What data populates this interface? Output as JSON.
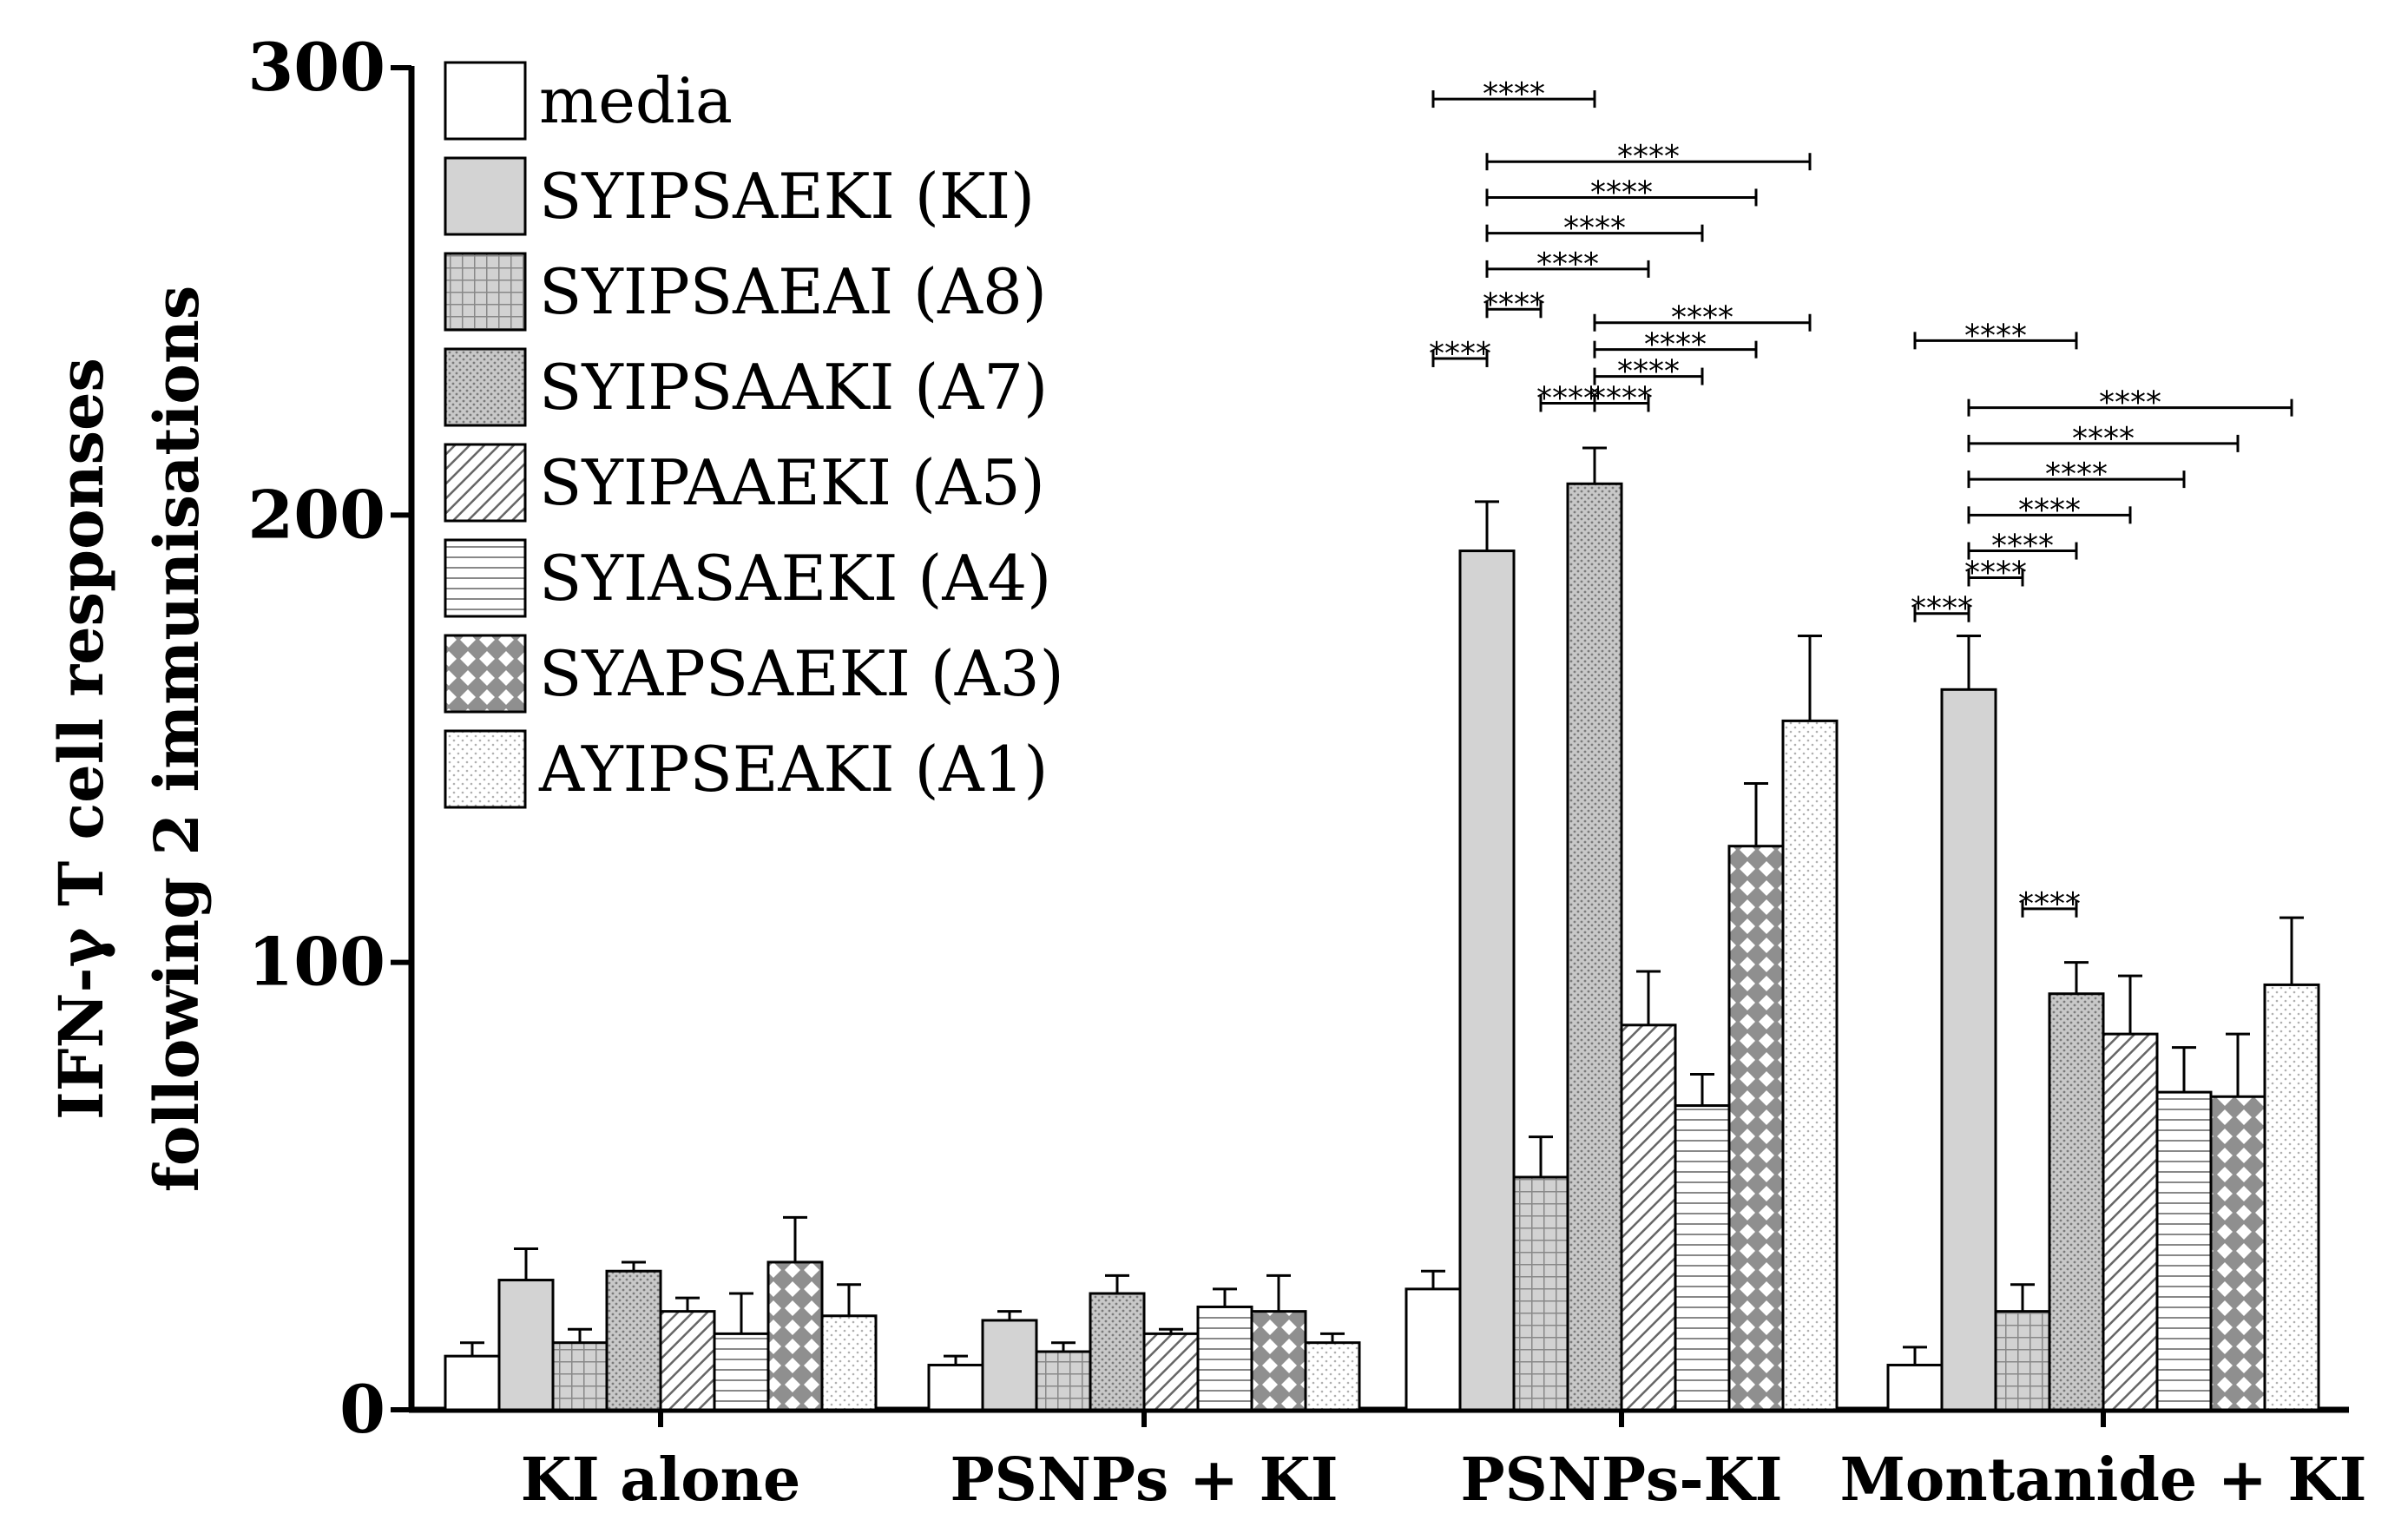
{
  "chart_data": {
    "type": "bar",
    "title": "",
    "xlabel": "",
    "ylabel": "IFN-γ T cell responses following 2 immunisations",
    "ylabel_lines": [
      "IFN-γ T cell responses",
      "following 2 immunisations"
    ],
    "ylim": [
      0,
      300
    ],
    "yticks": [
      "0",
      "100",
      "200",
      "300"
    ],
    "categories": [
      "KI alone",
      "PSNPs + KI",
      "PSNPs-KI",
      "Montanide + KI"
    ],
    "legend_position": "top-left",
    "series": [
      {
        "name": "media",
        "pattern": "white",
        "values": [
          12,
          10,
          27,
          10
        ],
        "errors": [
          3,
          2,
          4,
          4
        ]
      },
      {
        "name": "SYIPSAEKI (KI)",
        "pattern": "solid-gray",
        "values": [
          29,
          20,
          192,
          161
        ],
        "errors": [
          7,
          2,
          11,
          12
        ]
      },
      {
        "name": "SYIPSAEAI (A8)",
        "pattern": "grid",
        "values": [
          15,
          13,
          52,
          22
        ],
        "errors": [
          3,
          2,
          9,
          6
        ]
      },
      {
        "name": "SYIPSAAKI (A7)",
        "pattern": "dots",
        "values": [
          31,
          26,
          207,
          93
        ],
        "errors": [
          2,
          4,
          8,
          7
        ]
      },
      {
        "name": "SYIPAAEKI (A5)",
        "pattern": "diagonal",
        "values": [
          22,
          17,
          86,
          84
        ],
        "errors": [
          3,
          1,
          12,
          13
        ]
      },
      {
        "name": "SYIASAEKI (A4)",
        "pattern": "horizontal",
        "values": [
          17,
          23,
          68,
          71
        ],
        "errors": [
          9,
          4,
          7,
          10
        ]
      },
      {
        "name": "SYAPSAEKI (A3)",
        "pattern": "checker",
        "values": [
          33,
          22,
          126,
          70
        ],
        "errors": [
          10,
          8,
          14,
          14
        ]
      },
      {
        "name": "AYIPSEAKI (A1)",
        "pattern": "light-dots",
        "values": [
          21,
          15,
          154,
          95
        ],
        "errors": [
          7,
          2,
          19,
          15
        ]
      }
    ],
    "significance": [
      {
        "group": "PSNPs-KI",
        "from": "media",
        "to": "SYIPSAAKI (A7)",
        "level": 293,
        "label": "****"
      },
      {
        "group": "PSNPs-KI",
        "from": "SYIPSAEKI (KI)",
        "to": "AYIPSEAKI (A1)",
        "level": 279,
        "label": "****"
      },
      {
        "group": "PSNPs-KI",
        "from": "SYIPSAEKI (KI)",
        "to": "SYAPSAEKI (A3)",
        "level": 271,
        "label": "****"
      },
      {
        "group": "PSNPs-KI",
        "from": "SYIPSAEKI (KI)",
        "to": "SYIASAEKI (A4)",
        "level": 263,
        "label": "****"
      },
      {
        "group": "PSNPs-KI",
        "from": "SYIPSAEKI (KI)",
        "to": "SYIPAAEKI (A5)",
        "level": 255,
        "label": "****"
      },
      {
        "group": "PSNPs-KI",
        "from": "SYIPSAEKI (KI)",
        "to": "SYIPSAEAI (A8)",
        "level": 246,
        "label": "****"
      },
      {
        "group": "PSNPs-KI",
        "from": "media",
        "to": "SYIPSAEKI (KI)",
        "level": 235,
        "label": "****"
      },
      {
        "group": "PSNPs-KI",
        "from": "SYIPSAAKI (A7)",
        "to": "AYIPSEAKI (A1)",
        "level": 243,
        "label": "****"
      },
      {
        "group": "PSNPs-KI",
        "from": "SYIPSAAKI (A7)",
        "to": "SYAPSAEKI (A3)",
        "level": 237,
        "label": "****"
      },
      {
        "group": "PSNPs-KI",
        "from": "SYIPSAAKI (A7)",
        "to": "SYIASAEKI (A4)",
        "level": 231,
        "label": "****"
      },
      {
        "group": "PSNPs-KI",
        "from": "SYIPSAAKI (A7)",
        "to": "SYIPAAEKI (A5)",
        "level": 225,
        "label": "****"
      },
      {
        "group": "PSNPs-KI",
        "from": "SYIPSAEAI (A8)",
        "to": "SYIPSAAKI (A7)",
        "level": 225,
        "label": "****"
      },
      {
        "group": "Montanide + KI",
        "from": "media",
        "to": "SYIPSAAKI (A7)",
        "level": 239,
        "label": "****"
      },
      {
        "group": "Montanide + KI",
        "from": "SYIPSAEKI (KI)",
        "to": "AYIPSEAKI (A1)",
        "level": 224,
        "label": "****"
      },
      {
        "group": "Montanide + KI",
        "from": "SYIPSAEKI (KI)",
        "to": "SYAPSAEKI (A3)",
        "level": 216,
        "label": "****"
      },
      {
        "group": "Montanide + KI",
        "from": "SYIPSAEKI (KI)",
        "to": "SYIASAEKI (A4)",
        "level": 208,
        "label": "****"
      },
      {
        "group": "Montanide + KI",
        "from": "SYIPSAEKI (KI)",
        "to": "SYIPAAEKI (A5)",
        "level": 200,
        "label": "****"
      },
      {
        "group": "Montanide + KI",
        "from": "SYIPSAEKI (KI)",
        "to": "SYIPSAAKI (A7)",
        "level": 192,
        "label": "****"
      },
      {
        "group": "Montanide + KI",
        "from": "SYIPSAEKI (KI)",
        "to": "SYIPSAEAI (A8)",
        "level": 186,
        "label": "****"
      },
      {
        "group": "Montanide + KI",
        "from": "media",
        "to": "SYIPSAEKI (KI)",
        "level": 178,
        "label": "****"
      },
      {
        "group": "Montanide + KI",
        "from": "SYIPSAEAI (A8)",
        "to": "SYIPSAAKI (A7)",
        "level": 112,
        "label": "****"
      }
    ]
  }
}
